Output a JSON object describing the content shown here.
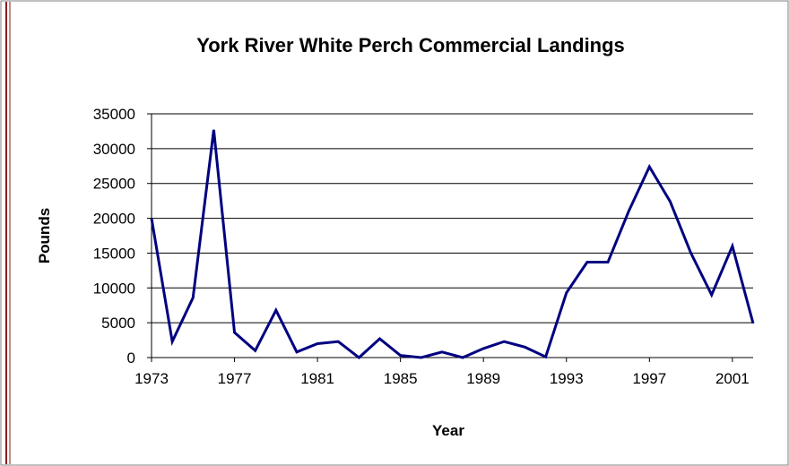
{
  "chart_data": {
    "type": "line",
    "title": "York River White Perch Commercial Landings",
    "x_label": "Year",
    "y_label": "Pounds",
    "x": [
      1973,
      1974,
      1975,
      1976,
      1977,
      1978,
      1979,
      1980,
      1981,
      1982,
      1983,
      1984,
      1985,
      1986,
      1987,
      1988,
      1989,
      1990,
      1991,
      1992,
      1993,
      1994,
      1995,
      1996,
      1997,
      1998,
      1999,
      2000,
      2001,
      2002
    ],
    "series": [
      {
        "name": "Landings",
        "color": "#000080",
        "values": [
          20000,
          2300,
          8600,
          32700,
          3600,
          1000,
          6800,
          800,
          2000,
          2300,
          0,
          2700,
          300,
          0,
          800,
          0,
          1300,
          2300,
          1500,
          100,
          9300,
          13700,
          13700,
          21000,
          27400,
          22400,
          15000,
          9000,
          16000,
          4900
        ]
      }
    ],
    "xlim": [
      1973,
      2002
    ],
    "xticks": [
      1973,
      1977,
      1981,
      1985,
      1989,
      1993,
      1997,
      2001
    ],
    "ylim": [
      0,
      35000
    ],
    "yticks": [
      0,
      5000,
      10000,
      15000,
      20000,
      25000,
      30000,
      35000
    ],
    "grid": true
  }
}
